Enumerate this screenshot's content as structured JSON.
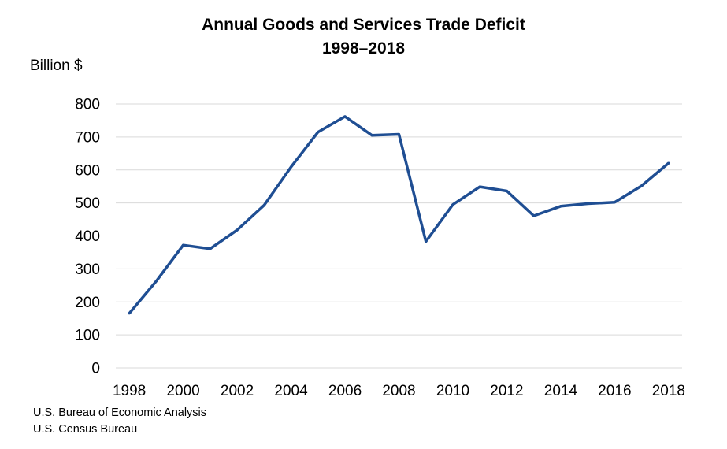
{
  "chart_data": {
    "type": "line",
    "title": "Annual Goods and Services Trade Deficit",
    "subtitle": "1998–2018",
    "ylabel": "Billion $",
    "xlabel": "",
    "x": [
      1998,
      1999,
      2000,
      2001,
      2002,
      2003,
      2004,
      2005,
      2006,
      2007,
      2008,
      2009,
      2010,
      2011,
      2012,
      2013,
      2014,
      2015,
      2016,
      2017,
      2018
    ],
    "series": [
      {
        "values": [
          165,
          263,
          372,
          361,
          418,
          493,
          609,
          715,
          762,
          705,
          708,
          383,
          495,
          549,
          536,
          461,
          490,
          498,
          502,
          552,
          621
        ],
        "color": "#1f4e93"
      }
    ],
    "xticks": [
      "1998",
      "2000",
      "2002",
      "2004",
      "2006",
      "2008",
      "2010",
      "2012",
      "2014",
      "2016",
      "2018"
    ],
    "yticks": [
      "0",
      "100",
      "200",
      "300",
      "400",
      "500",
      "600",
      "700",
      "800"
    ],
    "xlim": [
      1998,
      2018
    ],
    "ylim": [
      0,
      800
    ],
    "grid": "horizontal",
    "legend": "none"
  },
  "sources": [
    "U.S. Bureau of Economic Analysis",
    "U.S. Census Bureau"
  ]
}
